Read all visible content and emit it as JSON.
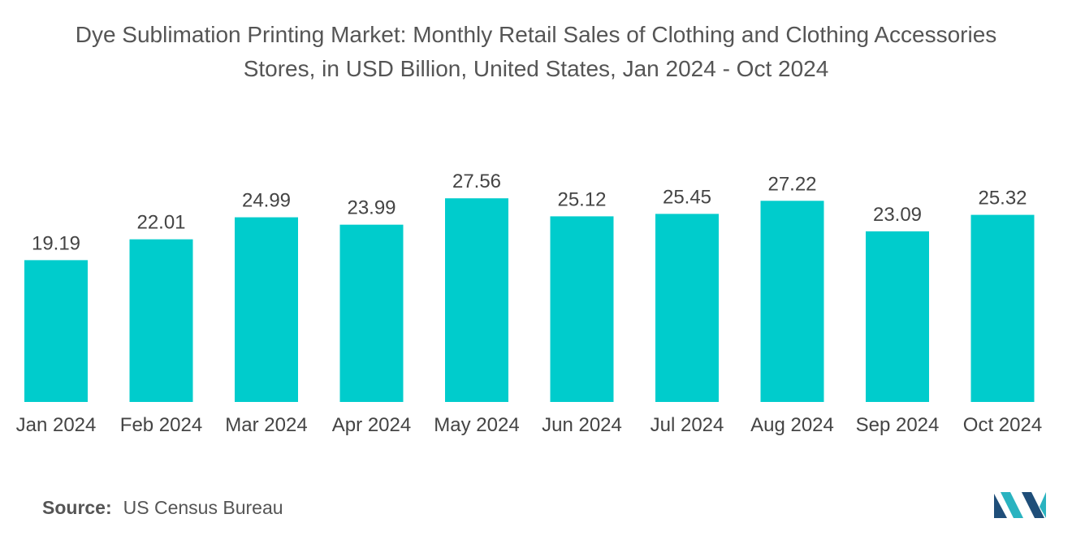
{
  "chart_data": {
    "type": "bar",
    "title_lines": [
      "Dye Sublimation Printing Market: Monthly Retail Sales of Clothing and Clothing Accessories",
      "Stores, in USD Billion, United States, Jan 2024 - Oct 2024"
    ],
    "categories": [
      "Jan 2024",
      "Feb 2024",
      "Mar 2024",
      "Apr 2024",
      "May 2024",
      "Jun 2024",
      "Jul 2024",
      "Aug 2024",
      "Sep 2024",
      "Oct 2024"
    ],
    "values": [
      19.19,
      22.01,
      24.99,
      23.99,
      27.56,
      25.12,
      25.45,
      27.22,
      23.09,
      25.32
    ],
    "value_labels": [
      "19.19",
      "22.01",
      "24.99",
      "23.99",
      "27.56",
      "25.12",
      "25.45",
      "27.22",
      "23.09",
      "25.32"
    ],
    "xlabel": "",
    "ylabel": "",
    "ylim": [
      0,
      30
    ],
    "grid": false,
    "bar_color": "#00CCCC"
  },
  "source": {
    "label": "Source:",
    "text": "US Census Bureau"
  },
  "colors": {
    "logo_dark": "#1F4E79",
    "logo_teal": "#2AB3C0"
  }
}
